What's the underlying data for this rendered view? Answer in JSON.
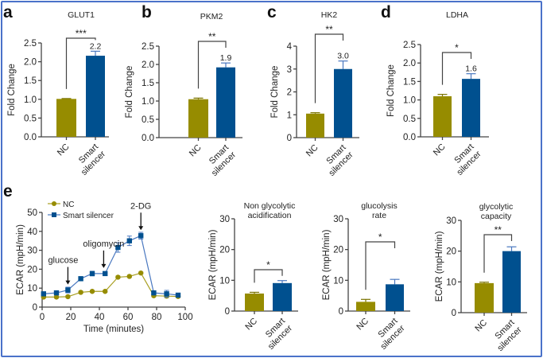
{
  "colors": {
    "nc": "#968c00",
    "smart_silencer": "#00508f",
    "frame": "#4a72c9"
  },
  "chart_data": [
    {
      "id": "a",
      "panel_label": "a",
      "type": "bar",
      "title": "GLUT1",
      "ylabel": "Fold Change",
      "ylim": [
        0,
        2.5
      ],
      "yticks": [
        "0.0",
        "0.5",
        "1.0",
        "1.5",
        "2.0",
        "2.5"
      ],
      "categories": [
        [
          "NC"
        ],
        [
          "Smart",
          "silencer"
        ]
      ],
      "values": [
        1.01,
        2.16
      ],
      "errors": [
        0.01,
        0.12
      ],
      "value_label": "2.2",
      "significance": "***"
    },
    {
      "id": "b",
      "panel_label": "b",
      "type": "bar",
      "title": "PKM2",
      "ylabel": "Fold Change",
      "ylim": [
        0,
        2.5
      ],
      "yticks": [
        "0.0",
        "0.5",
        "1.0",
        "1.5",
        "2.0",
        "2.5"
      ],
      "categories": [
        [
          "NC"
        ],
        [
          "Smart",
          "silencer"
        ]
      ],
      "values": [
        1.05,
        1.92
      ],
      "errors": [
        0.03,
        0.12
      ],
      "value_label": "1.9",
      "significance": "**"
    },
    {
      "id": "c",
      "panel_label": "c",
      "type": "bar",
      "title": "HK2",
      "ylabel": "Fold Change",
      "ylim": [
        0,
        4
      ],
      "yticks": [
        "0",
        "1",
        "2",
        "3",
        "4"
      ],
      "categories": [
        [
          "NC"
        ],
        [
          "Smart",
          "silencer"
        ]
      ],
      "values": [
        1.05,
        3.0
      ],
      "errors": [
        0.04,
        0.35
      ],
      "value_label": "3.0",
      "significance": "**"
    },
    {
      "id": "d",
      "panel_label": "d",
      "type": "bar",
      "title": "LDHA",
      "ylabel": "Fold Change",
      "ylim": [
        0,
        2.5
      ],
      "yticks": [
        "0.0",
        "0.5",
        "1.0",
        "1.5",
        "2.0",
        "2.5"
      ],
      "categories": [
        [
          "NC"
        ],
        [
          "Smart",
          "silencer"
        ]
      ],
      "values": [
        1.1,
        1.57
      ],
      "errors": [
        0.05,
        0.14
      ],
      "value_label": "1.6",
      "significance": "*"
    },
    {
      "id": "e",
      "panel_label": "e",
      "type": "line",
      "title": "",
      "xlabel": "Time (minutes)",
      "ylabel": "ECAR (mpH/min)",
      "xlim": [
        0,
        100
      ],
      "ylim": [
        0,
        50
      ],
      "xticks": [
        "0",
        "20",
        "40",
        "60",
        "80",
        "100"
      ],
      "yticks": [
        "0",
        "10",
        "20",
        "30",
        "40",
        "50"
      ],
      "x": [
        1,
        10,
        18,
        27,
        35,
        44,
        53,
        61,
        69,
        78,
        87,
        95
      ],
      "series": [
        {
          "name": "NC",
          "marker": "circle",
          "values": [
            5.3,
            5.3,
            5.5,
            7.8,
            8.3,
            8.3,
            15.8,
            16.2,
            18.0,
            6.0,
            5.8,
            5.6
          ],
          "errors": [
            0.5,
            0.5,
            0.5,
            0.5,
            0.5,
            0.5,
            0.5,
            0.5,
            0.5,
            0.5,
            0.8,
            0.5
          ]
        },
        {
          "name": "Smart silencer",
          "marker": "square",
          "values": [
            7.0,
            7.5,
            9.0,
            15.0,
            17.7,
            17.7,
            31.5,
            35.0,
            37.7,
            7.5,
            7.0,
            6.3
          ],
          "errors": [
            0.5,
            0.5,
            1.5,
            0.8,
            1.2,
            1.0,
            2.5,
            2.5,
            1.8,
            0.8,
            1.8,
            0.5
          ]
        }
      ],
      "annotations": [
        {
          "text": "glucose",
          "x": 18
        },
        {
          "text": "oligomycin",
          "x": 43
        },
        {
          "text": "2-DG",
          "x": 69
        }
      ]
    },
    {
      "id": "f1",
      "type": "bar",
      "title": [
        "Non glycolytic",
        "acidification"
      ],
      "ylabel": "ECAR (mpH/min)",
      "ylim": [
        0,
        30
      ],
      "yticks": [
        "0",
        "10",
        "20",
        "30"
      ],
      "categories": [
        [
          "NC"
        ],
        [
          "Smart",
          "silencer"
        ]
      ],
      "values": [
        5.7,
        9.1
      ],
      "errors": [
        0.4,
        0.8
      ],
      "significance": "*"
    },
    {
      "id": "f2",
      "type": "bar",
      "title": [
        "glucolysis",
        "rate"
      ],
      "ylabel": "ECAR (mpH/min)",
      "ylim": [
        0,
        30
      ],
      "yticks": [
        "0",
        "10",
        "20",
        "30"
      ],
      "categories": [
        [
          "NC"
        ],
        [
          "Smart",
          "silencer"
        ]
      ],
      "values": [
        3.0,
        8.7
      ],
      "errors": [
        0.8,
        1.6
      ],
      "significance": "*"
    },
    {
      "id": "f3",
      "type": "bar",
      "title": [
        "glycolytic",
        "capacity"
      ],
      "ylabel": "ECAR (mpH/min)",
      "ylim": [
        0,
        30
      ],
      "yticks": [
        "0",
        "10",
        "20",
        "30"
      ],
      "categories": [
        [
          "NC"
        ],
        [
          "Smart",
          "silencer"
        ]
      ],
      "values": [
        9.6,
        20.0
      ],
      "errors": [
        0.3,
        1.4
      ],
      "significance": "**"
    }
  ]
}
